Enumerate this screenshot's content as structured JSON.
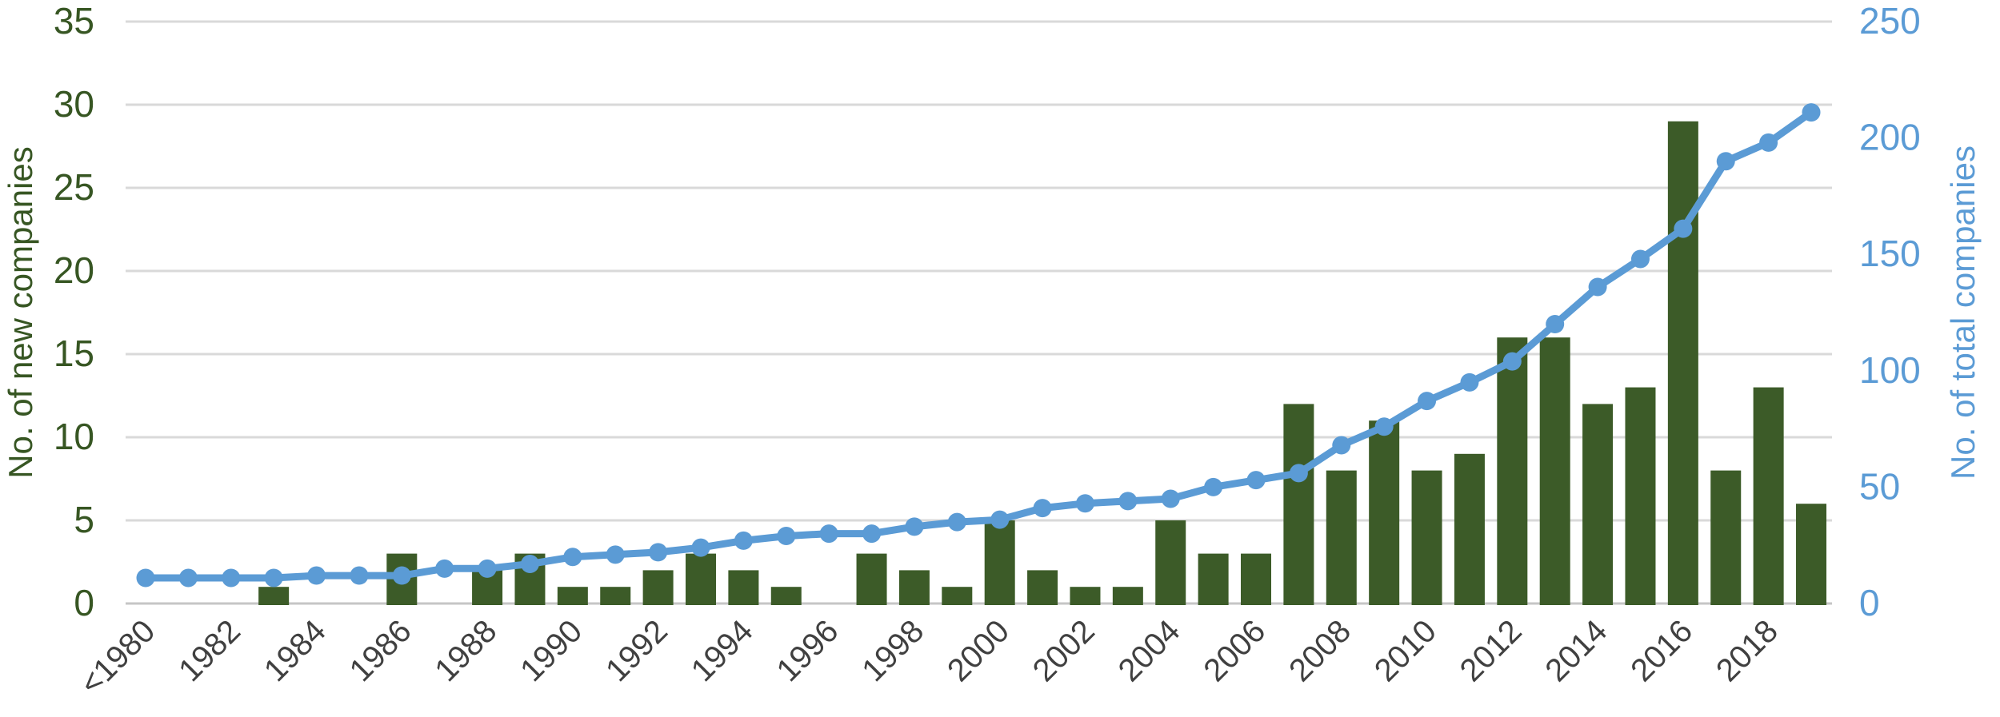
{
  "chart_data": {
    "type": "bar",
    "subtype": "bar-line-combo",
    "title": "",
    "categories": [
      "<1980",
      "1981",
      "1982",
      "1983",
      "1984",
      "1985",
      "1986",
      "1987",
      "1988",
      "1989",
      "1990",
      "1991",
      "1992",
      "1993",
      "1994",
      "1995",
      "1996",
      "1997",
      "1998",
      "1999",
      "2000",
      "2001",
      "2002",
      "2003",
      "2004",
      "2005",
      "2006",
      "2007",
      "2008",
      "2009",
      "2010",
      "2011",
      "2012",
      "2013",
      "2014",
      "2015",
      "2016",
      "2017",
      "2018",
      "2019"
    ],
    "x_tick_labels": [
      "<1980",
      "1982",
      "1984",
      "1986",
      "1988",
      "1990",
      "1992",
      "1994",
      "1996",
      "1998",
      "2000",
      "2002",
      "2004",
      "2006",
      "2008",
      "2010",
      "2012",
      "2014",
      "2016",
      "2018"
    ],
    "x_tick_every": 2,
    "series": [
      {
        "name": "No. of new companies",
        "type": "bar",
        "axis": "left",
        "color": "#3C5B28",
        "values": [
          0,
          0,
          0,
          1,
          0,
          0,
          3,
          0,
          2,
          3,
          1,
          1,
          2,
          3,
          2,
          1,
          0,
          3,
          2,
          1,
          5,
          2,
          1,
          1,
          5,
          3,
          3,
          12,
          8,
          11,
          8,
          9,
          16,
          16,
          12,
          13,
          29,
          8,
          13,
          6
        ]
      },
      {
        "name": "No. of total companies",
        "type": "line",
        "axis": "right",
        "color": "#5B9BD5",
        "values": [
          11,
          11,
          11,
          11,
          12,
          12,
          12,
          15,
          15,
          17,
          20,
          21,
          22,
          24,
          27,
          29,
          30,
          30,
          33,
          35,
          36,
          41,
          43,
          44,
          45,
          50,
          53,
          56,
          68,
          76,
          87,
          95,
          104,
          120,
          136,
          148,
          161,
          190,
          198,
          211
        ]
      }
    ],
    "left_axis": {
      "title": "No. of new companies",
      "min": 0,
      "max": 35,
      "step": 5,
      "ticks": [
        0,
        5,
        10,
        15,
        20,
        25,
        30,
        35
      ],
      "color": "#375623"
    },
    "right_axis": {
      "title": "No. of total companies",
      "min": 0,
      "max": 250,
      "step": 50,
      "ticks": [
        0,
        50,
        100,
        150,
        200,
        250
      ],
      "color": "#5B9BD5"
    },
    "grid": "horizontal",
    "legend": "none",
    "x_label_color": "#404040",
    "gridline_color": "#D9D9D9",
    "baseline_color": "#C6C6C6",
    "background": "#FFFFFF"
  }
}
